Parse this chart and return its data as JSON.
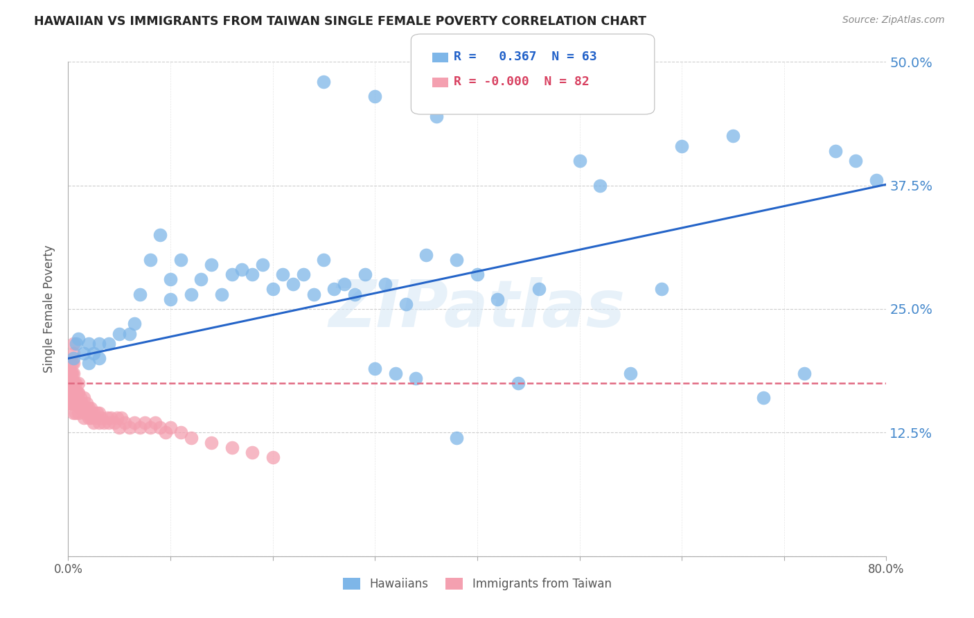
{
  "title": "HAWAIIAN VS IMMIGRANTS FROM TAIWAN SINGLE FEMALE POVERTY CORRELATION CHART",
  "source": "Source: ZipAtlas.com",
  "xlabel": "",
  "ylabel": "Single Female Poverty",
  "xlim": [
    0,
    0.8
  ],
  "ylim": [
    0,
    0.5
  ],
  "yticks": [
    0.0,
    0.125,
    0.25,
    0.375,
    0.5
  ],
  "ytick_labels": [
    "",
    "12.5%",
    "25.0%",
    "37.5%",
    "50.0%"
  ],
  "xticks": [
    0.0,
    0.1,
    0.2,
    0.3,
    0.4,
    0.5,
    0.6,
    0.7,
    0.8
  ],
  "xtick_labels": [
    "0.0%",
    "",
    "",
    "",
    "",
    "",
    "",
    "",
    "80.0%"
  ],
  "hawaiians_color": "#7eb6e8",
  "taiwan_color": "#f4a0b0",
  "blue_line_color": "#2464c8",
  "pink_line_color": "#e06880",
  "grid_color": "#cccccc",
  "right_label_color": "#4488cc",
  "legend_label1": "Hawaiians",
  "legend_label2": "Immigrants from Taiwan",
  "watermark": "ZIPatlas",
  "blue_intercept": 0.2,
  "blue_slope": 0.22,
  "pink_intercept": 0.175,
  "pink_slope": 0.0,
  "hawaiians_x": [
    0.005,
    0.008,
    0.01,
    0.015,
    0.02,
    0.02,
    0.025,
    0.03,
    0.03,
    0.04,
    0.05,
    0.06,
    0.065,
    0.07,
    0.08,
    0.09,
    0.1,
    0.1,
    0.11,
    0.12,
    0.13,
    0.14,
    0.15,
    0.16,
    0.17,
    0.18,
    0.19,
    0.2,
    0.21,
    0.22,
    0.23,
    0.24,
    0.25,
    0.26,
    0.27,
    0.28,
    0.29,
    0.3,
    0.31,
    0.32,
    0.33,
    0.34,
    0.35,
    0.36,
    0.38,
    0.4,
    0.42,
    0.44,
    0.46,
    0.5,
    0.52,
    0.55,
    0.58,
    0.6,
    0.65,
    0.68,
    0.72,
    0.75,
    0.77,
    0.79,
    0.25,
    0.3,
    0.38
  ],
  "hawaiians_y": [
    0.2,
    0.215,
    0.22,
    0.205,
    0.215,
    0.195,
    0.205,
    0.215,
    0.2,
    0.215,
    0.225,
    0.225,
    0.235,
    0.265,
    0.3,
    0.325,
    0.26,
    0.28,
    0.3,
    0.265,
    0.28,
    0.295,
    0.265,
    0.285,
    0.29,
    0.285,
    0.295,
    0.27,
    0.285,
    0.275,
    0.285,
    0.265,
    0.3,
    0.27,
    0.275,
    0.265,
    0.285,
    0.19,
    0.275,
    0.185,
    0.255,
    0.18,
    0.305,
    0.445,
    0.3,
    0.285,
    0.26,
    0.175,
    0.27,
    0.4,
    0.375,
    0.185,
    0.27,
    0.415,
    0.425,
    0.16,
    0.185,
    0.41,
    0.4,
    0.38,
    0.48,
    0.465,
    0.12
  ],
  "taiwan_x": [
    0.002,
    0.002,
    0.002,
    0.002,
    0.002,
    0.003,
    0.003,
    0.003,
    0.003,
    0.004,
    0.004,
    0.004,
    0.004,
    0.004,
    0.005,
    0.005,
    0.005,
    0.005,
    0.005,
    0.005,
    0.005,
    0.005,
    0.006,
    0.006,
    0.006,
    0.007,
    0.007,
    0.007,
    0.007,
    0.008,
    0.008,
    0.009,
    0.009,
    0.01,
    0.01,
    0.01,
    0.01,
    0.012,
    0.012,
    0.013,
    0.015,
    0.015,
    0.015,
    0.016,
    0.017,
    0.018,
    0.02,
    0.02,
    0.022,
    0.022,
    0.023,
    0.025,
    0.025,
    0.026,
    0.028,
    0.03,
    0.03,
    0.032,
    0.035,
    0.038,
    0.04,
    0.042,
    0.045,
    0.048,
    0.05,
    0.052,
    0.055,
    0.06,
    0.065,
    0.07,
    0.075,
    0.08,
    0.085,
    0.09,
    0.095,
    0.1,
    0.11,
    0.12,
    0.14,
    0.16,
    0.18,
    0.2
  ],
  "taiwan_y": [
    0.155,
    0.165,
    0.175,
    0.185,
    0.195,
    0.155,
    0.165,
    0.175,
    0.185,
    0.155,
    0.165,
    0.175,
    0.185,
    0.195,
    0.145,
    0.155,
    0.165,
    0.175,
    0.185,
    0.195,
    0.205,
    0.215,
    0.155,
    0.165,
    0.175,
    0.145,
    0.155,
    0.165,
    0.175,
    0.155,
    0.165,
    0.155,
    0.165,
    0.145,
    0.155,
    0.165,
    0.175,
    0.15,
    0.16,
    0.155,
    0.14,
    0.15,
    0.16,
    0.145,
    0.15,
    0.155,
    0.14,
    0.15,
    0.14,
    0.15,
    0.145,
    0.135,
    0.145,
    0.14,
    0.145,
    0.135,
    0.145,
    0.14,
    0.135,
    0.14,
    0.135,
    0.14,
    0.135,
    0.14,
    0.13,
    0.14,
    0.135,
    0.13,
    0.135,
    0.13,
    0.135,
    0.13,
    0.135,
    0.13,
    0.125,
    0.13,
    0.125,
    0.12,
    0.115,
    0.11,
    0.105,
    0.1
  ]
}
